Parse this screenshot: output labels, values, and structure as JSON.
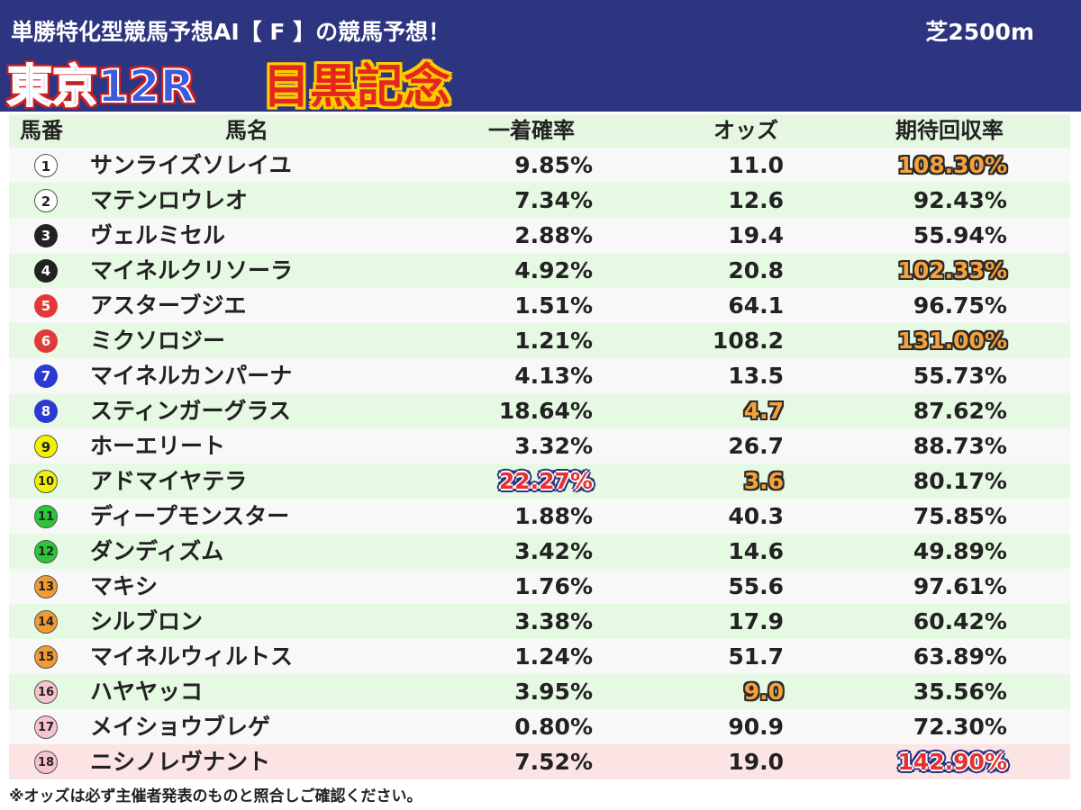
{
  "header": {
    "subtitle": "単勝特化型競馬予想AI【 F 】の競馬予想！",
    "surface": "芝2500m",
    "race": "東京12R",
    "race_name": "目黒記念"
  },
  "columns": {
    "number": "馬番",
    "name": "馬名",
    "win_prob": "一着確率",
    "odds": "オッズ",
    "expected_return": "期待回収率"
  },
  "colors": {
    "header_bg": "#2d3480",
    "row_highlight": "#e6f9e3",
    "last_row_bg": "#fde4e4",
    "accent_orange": "#f7a13c",
    "accent_red": "#e8302f"
  },
  "rows": [
    {
      "num": "1",
      "name": "サンライズソレイユ",
      "prob": "9.85%",
      "odds": "11.0",
      "ev": "108.30%"
    },
    {
      "num": "2",
      "name": "マテンロウレオ",
      "prob": "7.34%",
      "odds": "12.6",
      "ev": "92.43%"
    },
    {
      "num": "3",
      "name": "ヴェルミセル",
      "prob": "2.88%",
      "odds": "19.4",
      "ev": "55.94%"
    },
    {
      "num": "4",
      "name": "マイネルクリソーラ",
      "prob": "4.92%",
      "odds": "20.8",
      "ev": "102.33%"
    },
    {
      "num": "5",
      "name": "アスターブジエ",
      "prob": "1.51%",
      "odds": "64.1",
      "ev": "96.75%"
    },
    {
      "num": "6",
      "name": "ミクソロジー",
      "prob": "1.21%",
      "odds": "108.2",
      "ev": "131.00%"
    },
    {
      "num": "7",
      "name": "マイネルカンパーナ",
      "prob": "4.13%",
      "odds": "13.5",
      "ev": "55.73%"
    },
    {
      "num": "8",
      "name": "スティンガーグラス",
      "prob": "18.64%",
      "odds": "4.7",
      "ev": "87.62%"
    },
    {
      "num": "9",
      "name": "ホーエリート",
      "prob": "3.32%",
      "odds": "26.7",
      "ev": "88.73%"
    },
    {
      "num": "10",
      "name": "アドマイヤテラ",
      "prob": "22.27%",
      "odds": "3.6",
      "ev": "80.17%"
    },
    {
      "num": "11",
      "name": "ディープモンスター",
      "prob": "1.88%",
      "odds": "40.3",
      "ev": "75.85%"
    },
    {
      "num": "12",
      "name": "ダンディズム",
      "prob": "3.42%",
      "odds": "14.6",
      "ev": "49.89%"
    },
    {
      "num": "13",
      "name": "マキシ",
      "prob": "1.76%",
      "odds": "55.6",
      "ev": "97.61%"
    },
    {
      "num": "14",
      "name": "シルブロン",
      "prob": "3.38%",
      "odds": "17.9",
      "ev": "60.42%"
    },
    {
      "num": "15",
      "name": "マイネルウィルトス",
      "prob": "1.24%",
      "odds": "51.7",
      "ev": "63.89%"
    },
    {
      "num": "16",
      "name": "ハヤヤッコ",
      "prob": "3.95%",
      "odds": "9.0",
      "ev": "35.56%"
    },
    {
      "num": "17",
      "name": "メイショウブレゲ",
      "prob": "0.80%",
      "odds": "90.9",
      "ev": "72.30%"
    },
    {
      "num": "18",
      "name": "ニシノレヴナント",
      "prob": "7.52%",
      "odds": "19.0",
      "ev": "142.90%"
    }
  ],
  "footnote": "※オッズは必ず主催者発表のものと照合しご確認ください。"
}
